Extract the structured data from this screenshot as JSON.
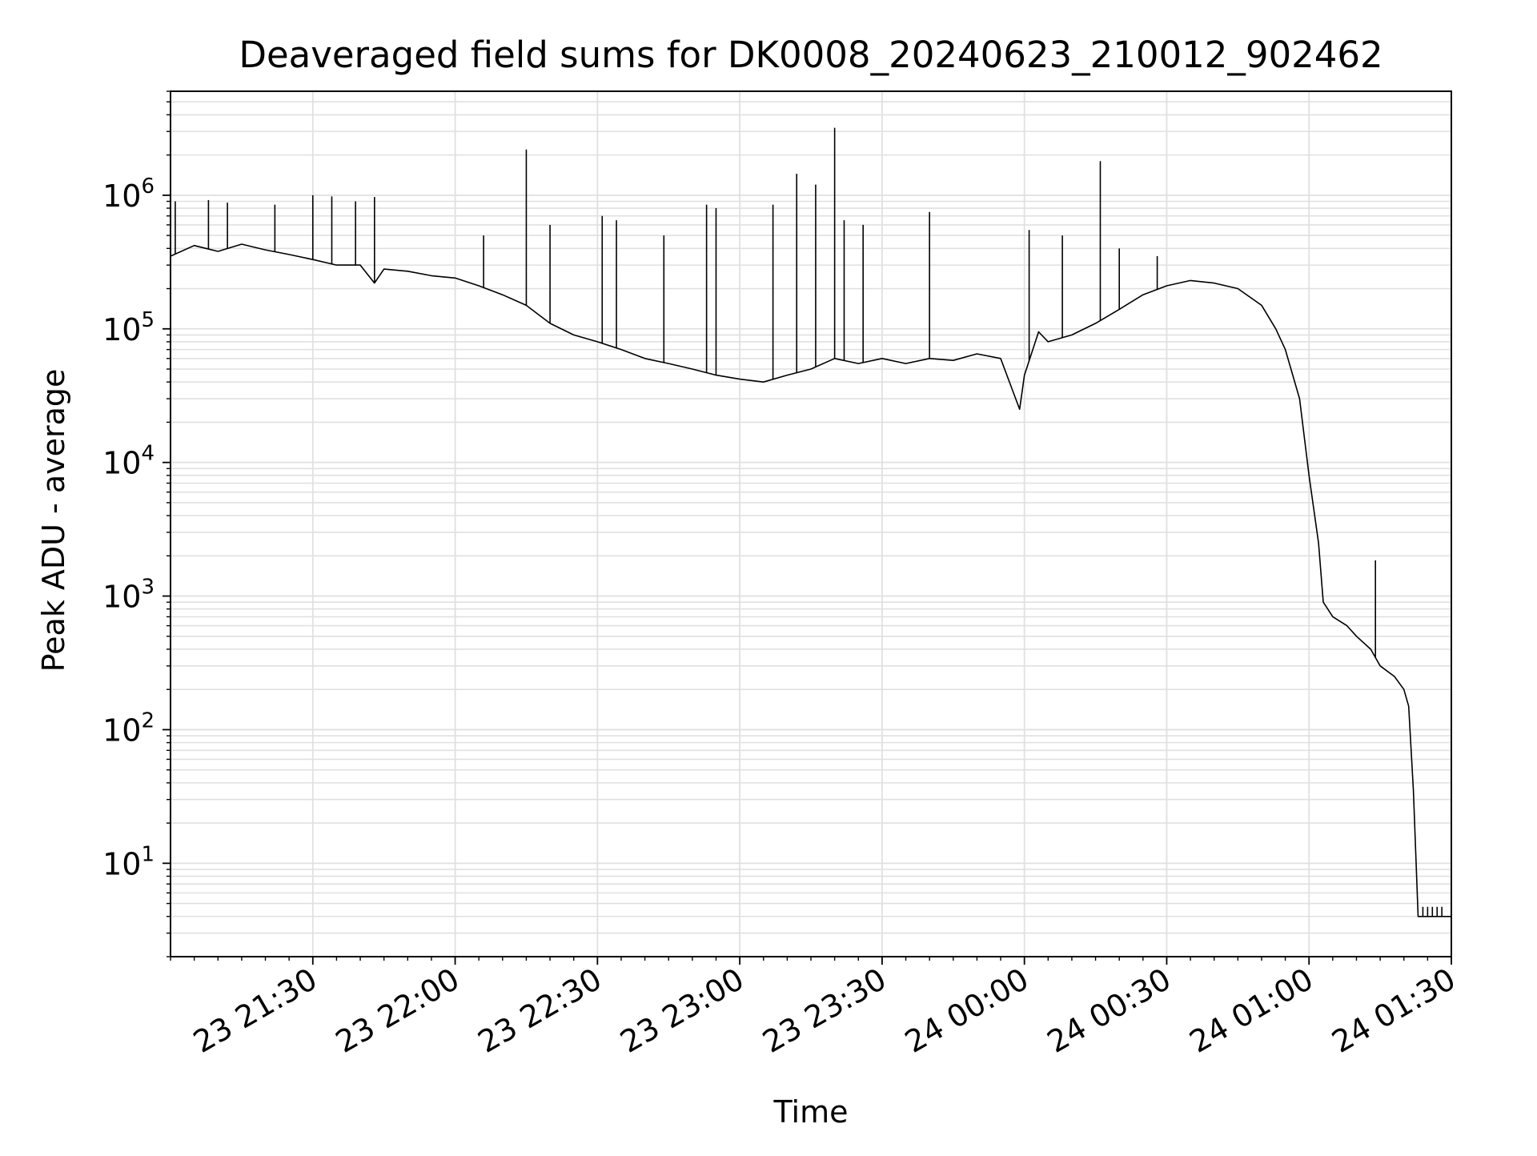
{
  "chart_data": {
    "type": "line",
    "title": "Deaveraged field sums for DK0008_20240623_210012_902462",
    "xlabel": "Time",
    "ylabel": "Peak ADU - average",
    "y_scale": "log",
    "ylim": [
      2,
      6000000
    ],
    "xlim": [
      "2024-06-23 21:00",
      "2024-06-24 01:30"
    ],
    "grid": true,
    "grid_minor": true,
    "x_ticks": [
      {
        "t": "2024-06-23 21:30",
        "label": "23 21:30"
      },
      {
        "t": "2024-06-23 22:00",
        "label": "23 22:00"
      },
      {
        "t": "2024-06-23 22:30",
        "label": "23 22:30"
      },
      {
        "t": "2024-06-23 23:00",
        "label": "23 23:00"
      },
      {
        "t": "2024-06-23 23:30",
        "label": "23 23:30"
      },
      {
        "t": "2024-06-24 00:00",
        "label": "24 00:00"
      },
      {
        "t": "2024-06-24 00:30",
        "label": "24 00:30"
      },
      {
        "t": "2024-06-24 01:00",
        "label": "24 01:00"
      },
      {
        "t": "2024-06-24 01:30",
        "label": "24 01:30"
      }
    ],
    "y_ticks": [
      {
        "v": 10,
        "base": "10",
        "exp": "1"
      },
      {
        "v": 100,
        "base": "10",
        "exp": "2"
      },
      {
        "v": 1000,
        "base": "10",
        "exp": "3"
      },
      {
        "v": 10000,
        "base": "10",
        "exp": "4"
      },
      {
        "v": 100000,
        "base": "10",
        "exp": "5"
      },
      {
        "v": 1000000,
        "base": "10",
        "exp": "6"
      }
    ],
    "line_color": "#000000",
    "grid_color": "#e0e0e0",
    "series": [
      {
        "name": "",
        "x": [
          "2024-06-23 21:00",
          "2024-06-23 21:05",
          "2024-06-23 21:10",
          "2024-06-23 21:15",
          "2024-06-23 21:20",
          "2024-06-23 21:25",
          "2024-06-23 21:30",
          "2024-06-23 21:35",
          "2024-06-23 21:40",
          "2024-06-23 21:43",
          "2024-06-23 21:45",
          "2024-06-23 21:50",
          "2024-06-23 21:55",
          "2024-06-23 22:00",
          "2024-06-23 22:05",
          "2024-06-23 22:10",
          "2024-06-23 22:15",
          "2024-06-23 22:20",
          "2024-06-23 22:25",
          "2024-06-23 22:30",
          "2024-06-23 22:35",
          "2024-06-23 22:40",
          "2024-06-23 22:45",
          "2024-06-23 22:50",
          "2024-06-23 22:55",
          "2024-06-23 23:00",
          "2024-06-23 23:05",
          "2024-06-23 23:10",
          "2024-06-23 23:15",
          "2024-06-23 23:20",
          "2024-06-23 23:25",
          "2024-06-23 23:30",
          "2024-06-23 23:35",
          "2024-06-23 23:40",
          "2024-06-23 23:45",
          "2024-06-23 23:50",
          "2024-06-23 23:55",
          "2024-06-23 23:59",
          "2024-06-24 00:00",
          "2024-06-24 00:03",
          "2024-06-24 00:05",
          "2024-06-24 00:10",
          "2024-06-24 00:15",
          "2024-06-24 00:20",
          "2024-06-24 00:25",
          "2024-06-24 00:30",
          "2024-06-24 00:35",
          "2024-06-24 00:40",
          "2024-06-24 00:45",
          "2024-06-24 00:50",
          "2024-06-24 00:53",
          "2024-06-24 00:55",
          "2024-06-24 00:58",
          "2024-06-24 01:00",
          "2024-06-24 01:02",
          "2024-06-24 01:03",
          "2024-06-24 01:05",
          "2024-06-24 01:08",
          "2024-06-24 01:10",
          "2024-06-24 01:13",
          "2024-06-24 01:15",
          "2024-06-24 01:18",
          "2024-06-24 01:20",
          "2024-06-24 01:21",
          "2024-06-24 01:22",
          "2024-06-24 01:23",
          "2024-06-24 01:25",
          "2024-06-24 01:30"
        ],
        "y": [
          350000,
          420000,
          380000,
          430000,
          390000,
          360000,
          330000,
          300000,
          300000,
          220000,
          280000,
          270000,
          250000,
          240000,
          210000,
          180000,
          150000,
          110000,
          90000,
          80000,
          70000,
          60000,
          55000,
          50000,
          45000,
          42000,
          40000,
          45000,
          50000,
          60000,
          55000,
          60000,
          55000,
          60000,
          58000,
          65000,
          60000,
          25000,
          45000,
          95000,
          80000,
          90000,
          110000,
          140000,
          180000,
          210000,
          230000,
          220000,
          200000,
          150000,
          100000,
          70000,
          30000,
          8000,
          2500,
          900,
          700,
          600,
          500,
          400,
          300,
          250,
          200,
          150,
          35,
          4,
          4,
          4
        ]
      }
    ],
    "spikes": [
      {
        "t": "2024-06-23 21:01",
        "y": 900000
      },
      {
        "t": "2024-06-23 21:08",
        "y": 920000
      },
      {
        "t": "2024-06-23 21:12",
        "y": 880000
      },
      {
        "t": "2024-06-23 21:22",
        "y": 850000
      },
      {
        "t": "2024-06-23 21:30",
        "y": 1000000
      },
      {
        "t": "2024-06-23 21:34",
        "y": 980000
      },
      {
        "t": "2024-06-23 21:39",
        "y": 900000
      },
      {
        "t": "2024-06-23 21:43",
        "y": 970000
      },
      {
        "t": "2024-06-23 22:06",
        "y": 500000
      },
      {
        "t": "2024-06-23 22:15",
        "y": 2200000
      },
      {
        "t": "2024-06-23 22:20",
        "y": 600000
      },
      {
        "t": "2024-06-23 22:31",
        "y": 700000
      },
      {
        "t": "2024-06-23 22:34",
        "y": 650000
      },
      {
        "t": "2024-06-23 22:44",
        "y": 500000
      },
      {
        "t": "2024-06-23 22:53",
        "y": 850000
      },
      {
        "t": "2024-06-23 22:55",
        "y": 800000
      },
      {
        "t": "2024-06-23 23:07",
        "y": 850000
      },
      {
        "t": "2024-06-23 23:12",
        "y": 1450000
      },
      {
        "t": "2024-06-23 23:16",
        "y": 1200000
      },
      {
        "t": "2024-06-23 23:20",
        "y": 3200000
      },
      {
        "t": "2024-06-23 23:22",
        "y": 650000
      },
      {
        "t": "2024-06-23 23:26",
        "y": 600000
      },
      {
        "t": "2024-06-23 23:40",
        "y": 750000
      },
      {
        "t": "2024-06-24 00:01",
        "y": 550000
      },
      {
        "t": "2024-06-24 00:08",
        "y": 500000
      },
      {
        "t": "2024-06-24 00:16",
        "y": 1800000
      },
      {
        "t": "2024-06-24 00:20",
        "y": 400000
      },
      {
        "t": "2024-06-24 00:28",
        "y": 350000
      },
      {
        "t": "2024-06-24 01:14",
        "y": 1850
      }
    ],
    "step_blips": [
      "2024-06-24 01:24",
      "2024-06-24 01:25",
      "2024-06-24 01:26",
      "2024-06-24 01:27",
      "2024-06-24 01:28"
    ]
  }
}
